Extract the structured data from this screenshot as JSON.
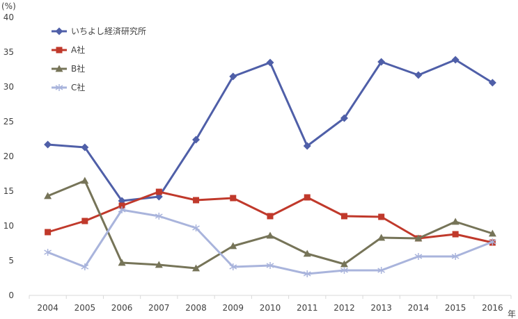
{
  "chart_data": {
    "type": "line",
    "y_unit_label": "(%)",
    "x_unit_label": "年",
    "categories": [
      "2004",
      "2005",
      "2006",
      "2007",
      "2008",
      "2009",
      "2010",
      "2011",
      "2012",
      "2013",
      "2014",
      "2015",
      "2016"
    ],
    "ylim": [
      0,
      40
    ],
    "yticks": [
      0,
      5,
      10,
      15,
      20,
      25,
      30,
      35,
      40
    ],
    "grid": false,
    "legend_position": "top-left",
    "series": [
      {
        "name": "いちよし経済研究所",
        "color": "#4F5FA8",
        "marker": "diamond",
        "values": [
          21.7,
          21.3,
          13.6,
          14.2,
          22.4,
          31.5,
          33.5,
          21.5,
          25.5,
          33.6,
          31.7,
          33.9,
          30.6
        ]
      },
      {
        "name": "A社",
        "color": "#C0392B",
        "marker": "square",
        "values": [
          9.1,
          10.7,
          12.9,
          14.9,
          13.7,
          14.0,
          11.4,
          14.1,
          11.4,
          11.3,
          8.2,
          8.8,
          7.6
        ]
      },
      {
        "name": "B社",
        "color": "#767458",
        "marker": "triangle",
        "values": [
          14.3,
          16.5,
          4.7,
          4.4,
          3.9,
          7.1,
          8.6,
          6.0,
          4.5,
          8.3,
          8.2,
          10.6,
          8.9
        ]
      },
      {
        "name": "C社",
        "color": "#A9B4DC",
        "marker": "asterisk",
        "values": [
          6.2,
          4.1,
          12.3,
          11.4,
          9.7,
          4.1,
          4.3,
          3.1,
          3.6,
          3.6,
          5.6,
          5.6,
          7.7
        ]
      }
    ]
  }
}
